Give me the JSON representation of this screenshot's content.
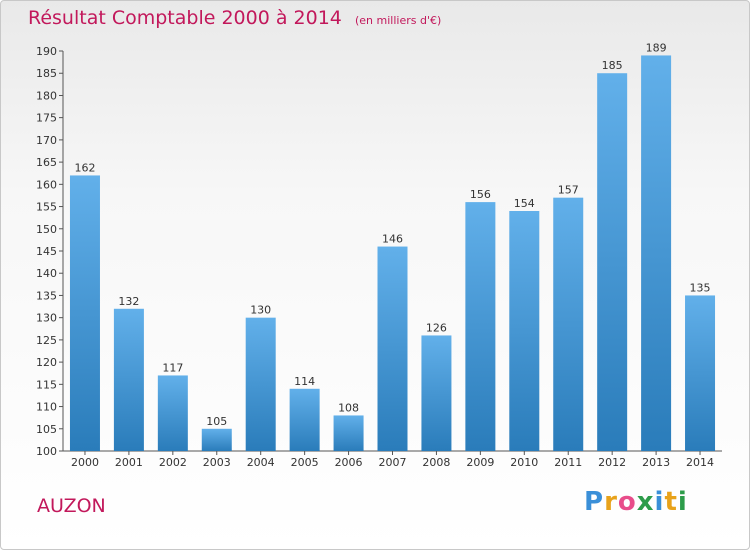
{
  "header": {
    "title": "Résultat Comptable 2000 à 2014",
    "subtitle": "(en milliers d'€)"
  },
  "footer": {
    "place_label": "AUZON",
    "logo_text": "Proxiti"
  },
  "colors": {
    "title": "#c2185b",
    "bar_top": "#62b0ea",
    "bar_bottom": "#2a7cba",
    "label": "#333333"
  },
  "chart_data": {
    "type": "bar",
    "title": "Résultat Comptable 2000 à 2014",
    "subtitle": "(en milliers d'€)",
    "categories": [
      "2000",
      "2001",
      "2002",
      "2003",
      "2004",
      "2005",
      "2006",
      "2007",
      "2008",
      "2009",
      "2010",
      "2011",
      "2012",
      "2013",
      "2014"
    ],
    "values": [
      162,
      132,
      117,
      105,
      130,
      114,
      108,
      146,
      126,
      156,
      154,
      157,
      185,
      189,
      135
    ],
    "ylim": [
      100,
      190
    ],
    "yticks": [
      100,
      105,
      110,
      115,
      120,
      125,
      130,
      135,
      140,
      145,
      150,
      155,
      160,
      165,
      170,
      175,
      180,
      185,
      190
    ],
    "grid": false,
    "data_labels": true
  }
}
